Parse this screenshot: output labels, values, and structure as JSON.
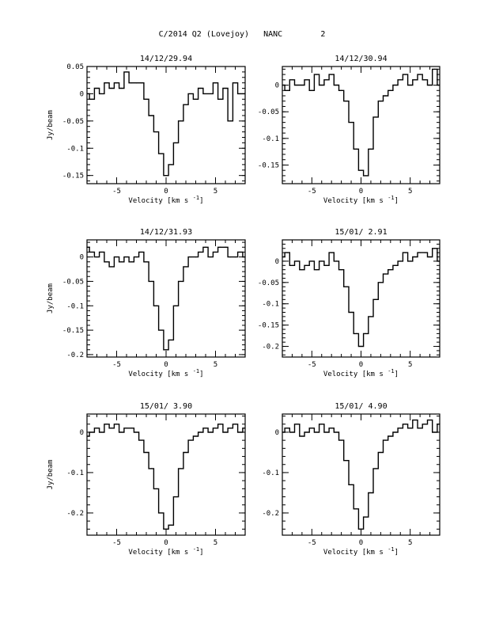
{
  "page": {
    "title": "C/2014 Q2 (Lovejoy)   NANC        2"
  },
  "chart_data": [
    {
      "type": "line",
      "title": "14/12/29.94",
      "xlabel": "Velocity [km s",
      "xlabel_sup": "-1",
      "xlabel_close": "]",
      "ylabel": "Jy/beam",
      "xlim": [
        -8,
        8
      ],
      "ylim": [
        -0.165,
        0.05
      ],
      "xticks": [
        -5,
        0,
        5
      ],
      "yticks": [
        0.05,
        0,
        -0.05,
        -0.1,
        -0.15
      ],
      "ytick_labels": [
        "0.05",
        "0",
        "-0.05",
        "-0.1",
        "-0.15"
      ],
      "x": [
        -8,
        -7.5,
        -7,
        -6.5,
        -6,
        -5.5,
        -5,
        -4.5,
        -4,
        -3.5,
        -3,
        -2.5,
        -2,
        -1.5,
        -1,
        -0.5,
        0,
        0.5,
        1,
        1.5,
        2,
        2.5,
        3,
        3.5,
        4,
        4.5,
        5,
        5.5,
        6,
        6.5,
        7,
        7.5,
        8
      ],
      "values": [
        0.0,
        -0.01,
        0.01,
        0.0,
        0.02,
        0.01,
        0.02,
        0.01,
        0.04,
        0.02,
        0.02,
        0.02,
        -0.01,
        -0.04,
        -0.07,
        -0.11,
        -0.15,
        -0.13,
        -0.09,
        -0.05,
        -0.02,
        0.0,
        -0.01,
        0.01,
        0.0,
        0.0,
        0.02,
        -0.01,
        0.01,
        -0.05,
        0.02,
        0.0,
        0.0
      ]
    },
    {
      "type": "line",
      "title": "14/12/30.94",
      "xlabel": "Velocity [km s",
      "xlabel_sup": "-1",
      "xlabel_close": "]",
      "ylabel": "",
      "xlim": [
        -8,
        8
      ],
      "ylim": [
        -0.185,
        0.035
      ],
      "xticks": [
        -5,
        0,
        5
      ],
      "yticks": [
        0,
        -0.05,
        -0.1,
        -0.15
      ],
      "ytick_labels": [
        "0",
        "-0.05",
        "-0.1",
        "-0.15"
      ],
      "x": [
        -8,
        -7.5,
        -7,
        -6.5,
        -6,
        -5.5,
        -5,
        -4.5,
        -4,
        -3.5,
        -3,
        -2.5,
        -2,
        -1.5,
        -1,
        -0.5,
        0,
        0.5,
        1,
        1.5,
        2,
        2.5,
        3,
        3.5,
        4,
        4.5,
        5,
        5.5,
        6,
        6.5,
        7,
        7.5,
        8
      ],
      "values": [
        0.0,
        -0.01,
        0.01,
        0.0,
        0.0,
        0.01,
        -0.01,
        0.02,
        0.0,
        0.01,
        0.02,
        0.0,
        -0.01,
        -0.03,
        -0.07,
        -0.12,
        -0.16,
        -0.17,
        -0.12,
        -0.06,
        -0.03,
        -0.02,
        -0.01,
        0.0,
        0.01,
        0.02,
        0.0,
        0.01,
        0.02,
        0.01,
        0.0,
        0.03,
        0.0
      ]
    },
    {
      "type": "line",
      "title": "14/12/31.93",
      "xlabel": "Velocity [km s",
      "xlabel_sup": "-1",
      "xlabel_close": "]",
      "ylabel": "Jy/beam",
      "xlim": [
        -8,
        8
      ],
      "ylim": [
        -0.205,
        0.035
      ],
      "xticks": [
        -5,
        0,
        5
      ],
      "yticks": [
        0,
        -0.05,
        -0.1,
        -0.15,
        -0.2
      ],
      "ytick_labels": [
        "0",
        "-0.05",
        "-0.1",
        "-0.15",
        "-0.2"
      ],
      "x": [
        -8,
        -7.5,
        -7,
        -6.5,
        -6,
        -5.5,
        -5,
        -4.5,
        -4,
        -3.5,
        -3,
        -2.5,
        -2,
        -1.5,
        -1,
        -0.5,
        0,
        0.5,
        1,
        1.5,
        2,
        2.5,
        3,
        3.5,
        4,
        4.5,
        5,
        5.5,
        6,
        6.5,
        7,
        7.5,
        8
      ],
      "values": [
        0.02,
        0.01,
        0.0,
        0.01,
        -0.01,
        -0.02,
        0.0,
        -0.01,
        0.0,
        -0.01,
        0.0,
        0.01,
        -0.01,
        -0.05,
        -0.1,
        -0.15,
        -0.19,
        -0.17,
        -0.1,
        -0.05,
        -0.02,
        0.0,
        0.0,
        0.01,
        0.02,
        0.0,
        0.01,
        0.02,
        0.02,
        0.0,
        0.0,
        0.01,
        0.0
      ]
    },
    {
      "type": "line",
      "title": "15/01/ 2.91",
      "xlabel": "Velocity [km s",
      "xlabel_sup": "-1",
      "xlabel_close": "]",
      "ylabel": "",
      "xlim": [
        -8,
        8
      ],
      "ylim": [
        -0.225,
        0.05
      ],
      "xticks": [
        -5,
        0,
        5
      ],
      "yticks": [
        0,
        -0.05,
        -0.1,
        -0.15,
        -0.2
      ],
      "ytick_labels": [
        "0",
        "-0.05",
        "-0.1",
        "-0.15",
        "-0.2"
      ],
      "x": [
        -8,
        -7.5,
        -7,
        -6.5,
        -6,
        -5.5,
        -5,
        -4.5,
        -4,
        -3.5,
        -3,
        -2.5,
        -2,
        -1.5,
        -1,
        -0.5,
        0,
        0.5,
        1,
        1.5,
        2,
        2.5,
        3,
        3.5,
        4,
        4.5,
        5,
        5.5,
        6,
        6.5,
        7,
        7.5,
        8
      ],
      "values": [
        0.01,
        0.02,
        -0.01,
        0.0,
        -0.02,
        -0.01,
        0.0,
        -0.02,
        0.0,
        -0.01,
        0.02,
        0.0,
        -0.02,
        -0.06,
        -0.12,
        -0.17,
        -0.2,
        -0.17,
        -0.13,
        -0.09,
        -0.05,
        -0.03,
        -0.02,
        -0.01,
        0.0,
        0.02,
        0.0,
        0.01,
        0.02,
        0.02,
        0.01,
        0.03,
        0.0
      ]
    },
    {
      "type": "line",
      "title": "15/01/ 3.90",
      "xlabel": "Velocity [km s",
      "xlabel_sup": "-1",
      "xlabel_close": "]",
      "ylabel": "Jy/beam",
      "xlim": [
        -8,
        8
      ],
      "ylim": [
        -0.255,
        0.045
      ],
      "xticks": [
        -5,
        0,
        5
      ],
      "yticks": [
        0,
        -0.1,
        -0.2
      ],
      "ytick_labels": [
        "0",
        "-0.1",
        "-0.2"
      ],
      "x": [
        -8,
        -7.5,
        -7,
        -6.5,
        -6,
        -5.5,
        -5,
        -4.5,
        -4,
        -3.5,
        -3,
        -2.5,
        -2,
        -1.5,
        -1,
        -0.5,
        0,
        0.5,
        1,
        1.5,
        2,
        2.5,
        3,
        3.5,
        4,
        4.5,
        5,
        5.5,
        6,
        6.5,
        7,
        7.5,
        8
      ],
      "values": [
        -0.01,
        0.0,
        0.01,
        0.0,
        0.02,
        0.01,
        0.02,
        0.0,
        0.01,
        0.01,
        0.0,
        -0.02,
        -0.05,
        -0.09,
        -0.14,
        -0.2,
        -0.24,
        -0.23,
        -0.16,
        -0.09,
        -0.05,
        -0.02,
        -0.01,
        0.0,
        0.01,
        0.0,
        0.01,
        0.02,
        0.0,
        0.01,
        0.02,
        0.0,
        0.01
      ]
    },
    {
      "type": "line",
      "title": "15/01/ 4.90",
      "xlabel": "Velocity [km s",
      "xlabel_sup": "-1",
      "xlabel_close": "]",
      "ylabel": "",
      "xlim": [
        -8,
        8
      ],
      "ylim": [
        -0.255,
        0.045
      ],
      "xticks": [
        -5,
        0,
        5
      ],
      "yticks": [
        0,
        -0.1,
        -0.2
      ],
      "ytick_labels": [
        "0",
        "-0.1",
        "-0.2"
      ],
      "x": [
        -8,
        -7.5,
        -7,
        -6.5,
        -6,
        -5.5,
        -5,
        -4.5,
        -4,
        -3.5,
        -3,
        -2.5,
        -2,
        -1.5,
        -1,
        -0.5,
        0,
        0.5,
        1,
        1.5,
        2,
        2.5,
        3,
        3.5,
        4,
        4.5,
        5,
        5.5,
        6,
        6.5,
        7,
        7.5,
        8
      ],
      "values": [
        0.0,
        0.01,
        0.0,
        0.02,
        -0.01,
        0.0,
        0.01,
        0.0,
        0.02,
        0.0,
        0.01,
        0.0,
        -0.02,
        -0.07,
        -0.13,
        -0.19,
        -0.24,
        -0.21,
        -0.15,
        -0.09,
        -0.05,
        -0.02,
        -0.01,
        0.0,
        0.01,
        0.02,
        0.01,
        0.03,
        0.01,
        0.02,
        0.03,
        0.0,
        0.02
      ]
    }
  ]
}
